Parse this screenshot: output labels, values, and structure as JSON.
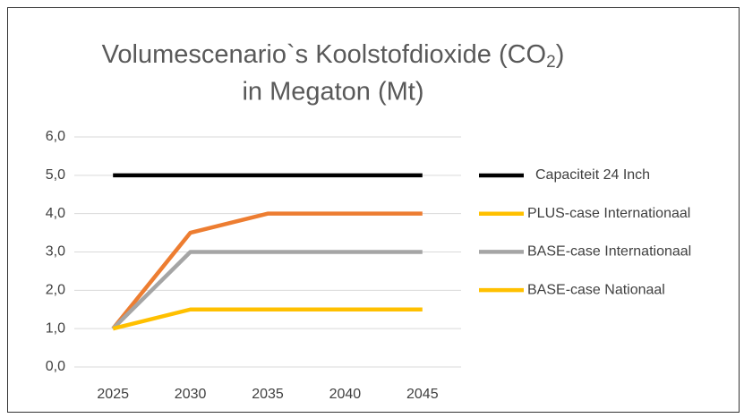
{
  "chart_data": {
    "type": "line",
    "title": [
      "Volumescenario`s Koolstofdioxide (CO",
      "2",
      ")",
      "in Megaton (Mt)"
    ],
    "categories": [
      "2025",
      "2030",
      "2035",
      "2040",
      "2045"
    ],
    "series": [
      {
        "name": "Capaciteit 24 Inch",
        "color": "#000000",
        "legend_color": "#000000",
        "values": [
          5,
          5,
          5,
          5,
          5
        ]
      },
      {
        "name": "PLUS-case Internationaal",
        "color": "#ed7d31",
        "legend_color": "#ffc000",
        "values": [
          1,
          3.5,
          4,
          4,
          4
        ]
      },
      {
        "name": "BASE-case Internationaal",
        "color": "#a5a5a5",
        "legend_color": "#a5a5a5",
        "values": [
          1,
          3,
          3,
          3,
          3
        ]
      },
      {
        "name": "BASE-case Nationaal",
        "color": "#ffc000",
        "legend_color": "#ffc000",
        "values": [
          1,
          1.5,
          1.5,
          1.5,
          1.5
        ]
      }
    ],
    "ylim": [
      0,
      6
    ],
    "yticks": [
      {
        "value": 0,
        "label": "0,0"
      },
      {
        "value": 1,
        "label": "1,0"
      },
      {
        "value": 2,
        "label": "2,0"
      },
      {
        "value": 3,
        "label": "3,0"
      },
      {
        "value": 4,
        "label": "4,0"
      },
      {
        "value": 5,
        "label": "5,0"
      },
      {
        "value": 6,
        "label": "6,0"
      }
    ],
    "grid": true,
    "legend": "right"
  }
}
